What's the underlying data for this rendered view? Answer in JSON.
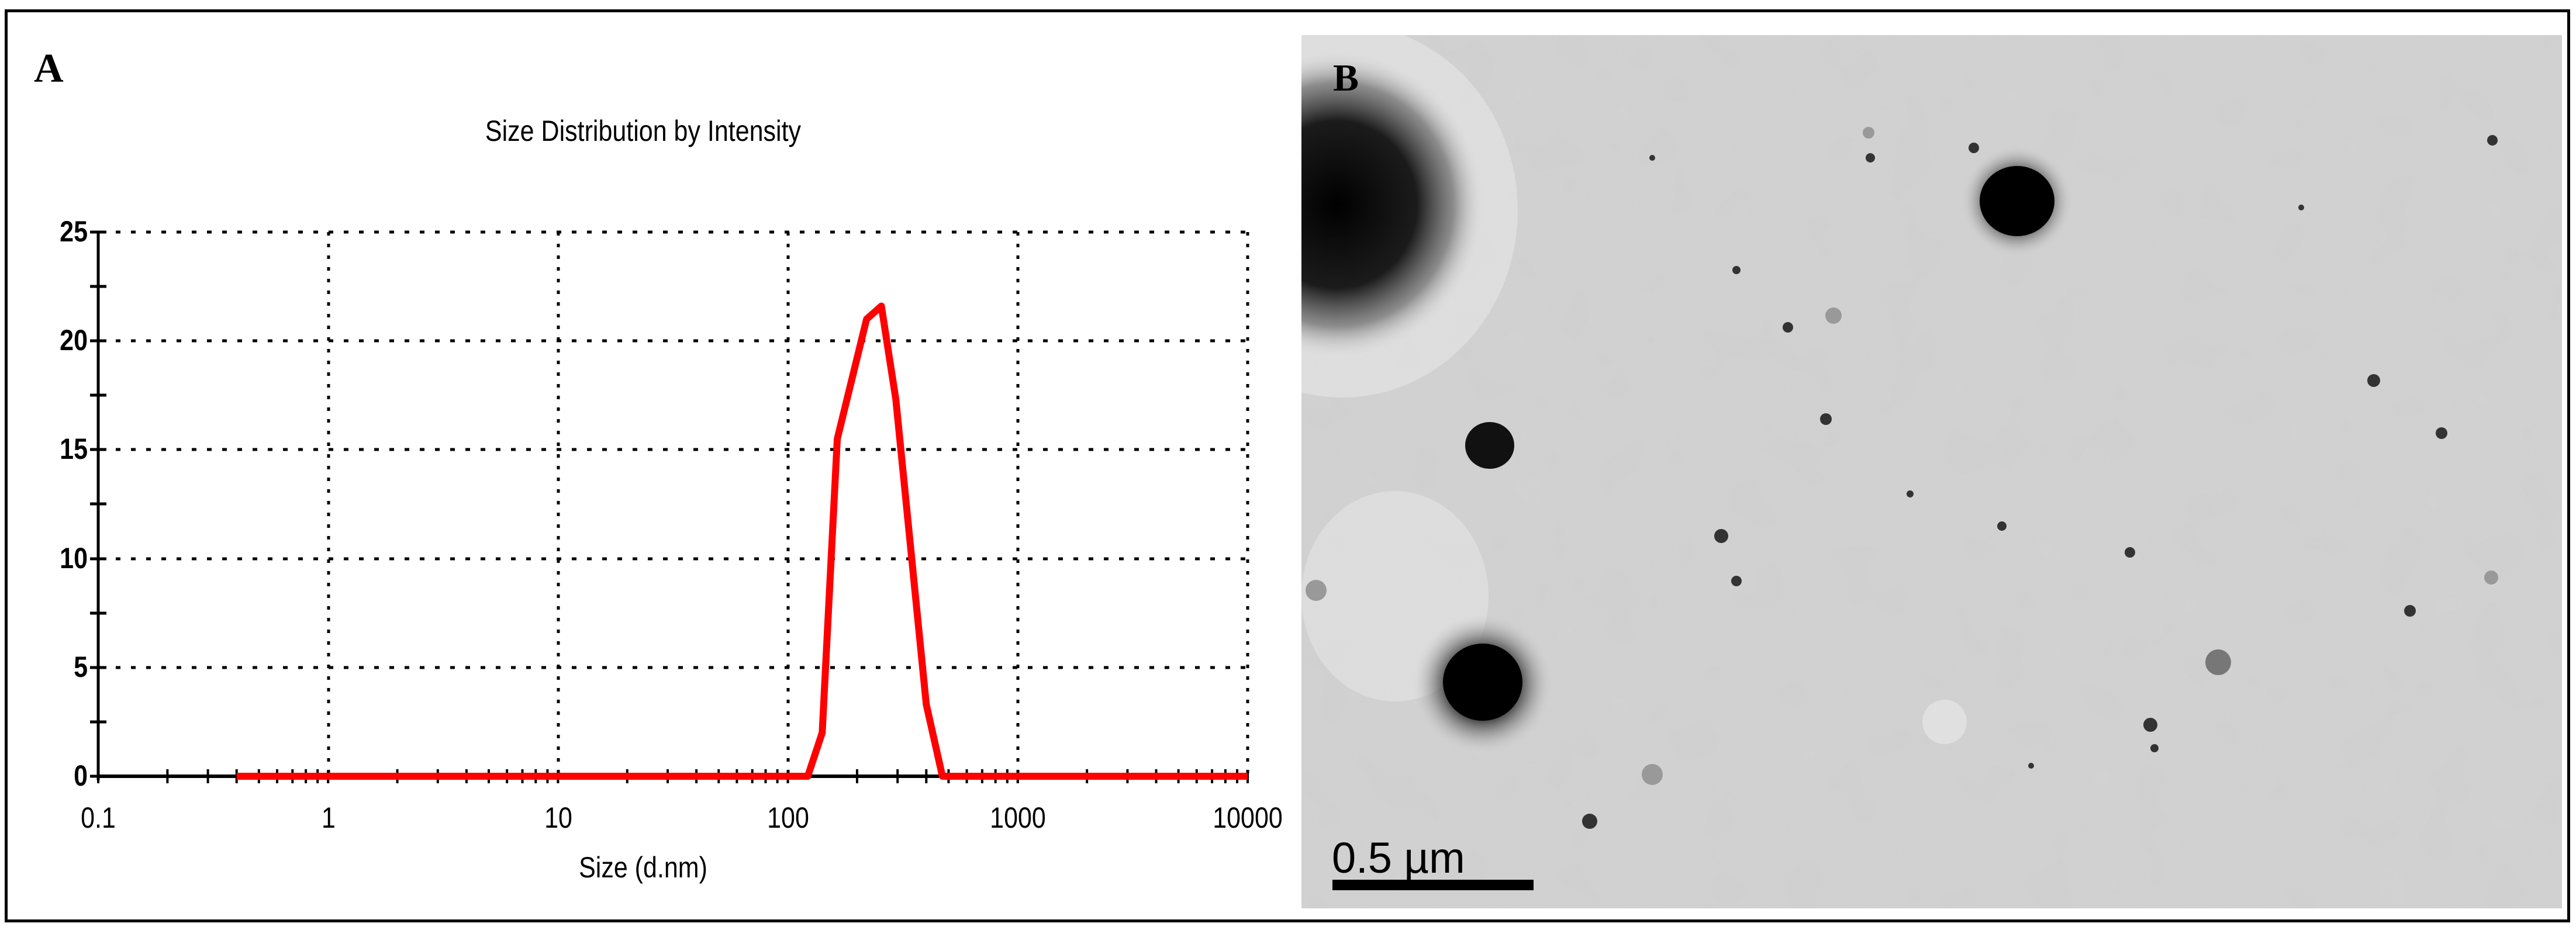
{
  "panels": {
    "a_label": "A",
    "b_label": "B"
  },
  "chart_data": {
    "type": "line",
    "title": "Size Distribution by Intensity",
    "xlabel": "Size (d.nm)",
    "ylabel": "",
    "x_scale": "log",
    "xlim": [
      0.1,
      10000
    ],
    "ylim": [
      0,
      25
    ],
    "x_ticks": [
      "0.1",
      "1",
      "10",
      "100",
      "1000",
      "10000"
    ],
    "y_ticks": [
      "0",
      "5",
      "10",
      "15",
      "20",
      "25"
    ],
    "grid": true,
    "legend": "none",
    "series": [
      {
        "name": "Intensity",
        "color": "#ff0000",
        "x": [
          0.4,
          1,
          10,
          100,
          122,
          141,
          164,
          220,
          255,
          295,
          400,
          470,
          1000,
          10000
        ],
        "y": [
          0,
          0,
          0,
          0,
          0,
          2.0,
          15.5,
          21.0,
          21.6,
          17.3,
          3.3,
          0,
          0,
          0
        ]
      }
    ]
  },
  "em_image": {
    "description": "TEM micrograph of nanoparticles",
    "scale_bar_label": "0.5 µm"
  }
}
